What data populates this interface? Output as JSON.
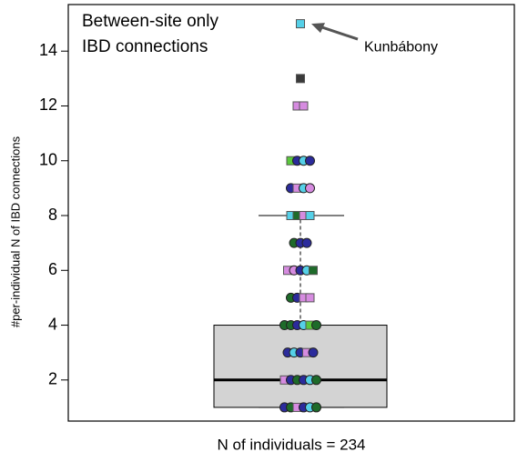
{
  "chart_data": {
    "type": "box",
    "title_lines": [
      "Between-site only",
      "IBD connections"
    ],
    "ylabel": "#per-individual N of IBD connections",
    "xlabel": "N of individuals = 234",
    "annotation": {
      "text": "Kunbábony",
      "value": 15
    },
    "ylim": [
      0.5,
      15.7
    ],
    "yticks": [
      2,
      4,
      6,
      8,
      10,
      12,
      14
    ],
    "box": {
      "whislo": 1,
      "q1": 1,
      "med": 2,
      "q3": 4,
      "whishi": 8,
      "color": "#d3d3d3"
    },
    "points": {
      "values": [
        15,
        13,
        12,
        12,
        10,
        10,
        10,
        10,
        9,
        9,
        9,
        9,
        8,
        8,
        8,
        8,
        7,
        7,
        7,
        6,
        6,
        6,
        6,
        6,
        5,
        5,
        5,
        5,
        4,
        4,
        4,
        4,
        4,
        4,
        3,
        3,
        3,
        3,
        3,
        2,
        2,
        2,
        2,
        2,
        2,
        1,
        1,
        1,
        1,
        1,
        1
      ],
      "colors": [
        "#55d0e8",
        "#3a3a3a",
        "#d68be0",
        "#d68be0",
        "#5ac83c",
        "#2b2b9c",
        "#55d0e8",
        "#2b2b9c",
        "#2b2b9c",
        "#d68be0",
        "#55d0e8",
        "#d68be0",
        "#55d0e8",
        "#1e6b2a",
        "#d68be0",
        "#55d0e8",
        "#1e6b2a",
        "#2b2b9c",
        "#2b2b9c",
        "#d68be0",
        "#d68be0",
        "#2b2b9c",
        "#55d0e8",
        "#1e6b2a",
        "#1e6b2a",
        "#2b2b9c",
        "#d68be0",
        "#d68be0",
        "#1e6b2a",
        "#1e6b2a",
        "#2b2b9c",
        "#55d0e8",
        "#5ac83c",
        "#1e6b2a",
        "#2b2b9c",
        "#55d0e8",
        "#2b2b9c",
        "#d68be0",
        "#2b2b9c",
        "#d68be0",
        "#2b2b9c",
        "#1e6b2a",
        "#2b2b9c",
        "#55d0e8",
        "#1e6b2a",
        "#2b2b9c",
        "#1e6b2a",
        "#d68be0",
        "#2b2b9c",
        "#55d0e8",
        "#1e6b2a"
      ],
      "shapes": [
        "square",
        "square",
        "square",
        "square",
        "square",
        "circle",
        "circle",
        "circle",
        "circle",
        "square",
        "circle",
        "circle",
        "square",
        "square",
        "square",
        "square",
        "circle",
        "circle",
        "circle",
        "square",
        "circle",
        "circle",
        "circle",
        "square",
        "circle",
        "circle",
        "square",
        "square",
        "circle",
        "circle",
        "circle",
        "circle",
        "square",
        "circle",
        "circle",
        "circle",
        "circle",
        "square",
        "circle",
        "square",
        "circle",
        "circle",
        "circle",
        "circle",
        "circle",
        "circle",
        "circle",
        "square",
        "circle",
        "circle",
        "circle"
      ]
    }
  }
}
